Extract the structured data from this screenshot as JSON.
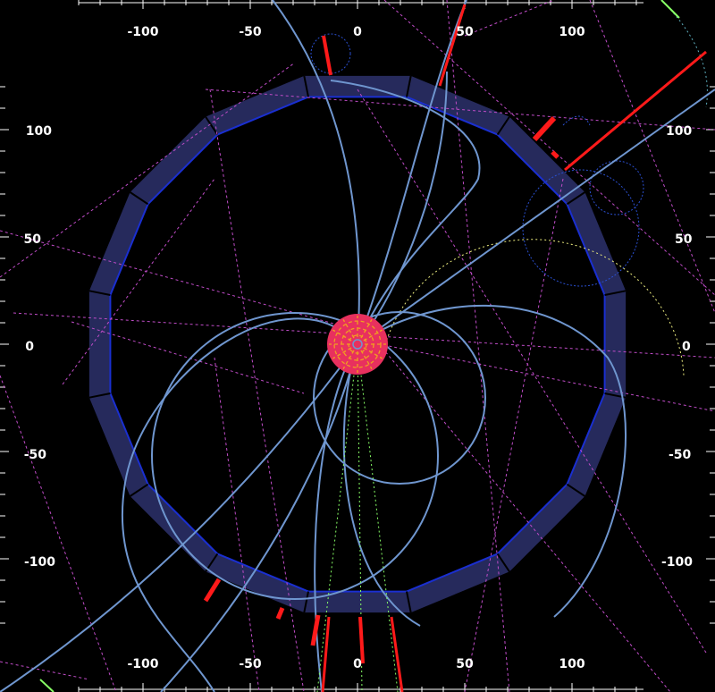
{
  "axes": {
    "top_labels": [
      "-100",
      "-50",
      "0",
      "50",
      "100"
    ],
    "bottom_labels": [
      "-100",
      "-50",
      "0",
      "50",
      "100"
    ],
    "left_labels": [
      "100",
      "50",
      "0",
      "-50",
      "-100"
    ],
    "right_labels": [
      "100",
      "50",
      "0",
      "-50",
      "-100"
    ],
    "x_values": [
      -100,
      -50,
      0,
      50,
      100
    ],
    "y_values": [
      100,
      50,
      0,
      -50,
      -100
    ]
  },
  "colors": {
    "background": "#000000",
    "detector_ring": "#262a5c",
    "detector_edge": "#1a2fd0",
    "track": "#6f96cf",
    "dashed_track": "#c04cc8",
    "calo_hit": "#ff1a1a",
    "core": "#e8305e",
    "neutral_track": "#88ff66",
    "yellow_track": "#f0f080"
  }
}
